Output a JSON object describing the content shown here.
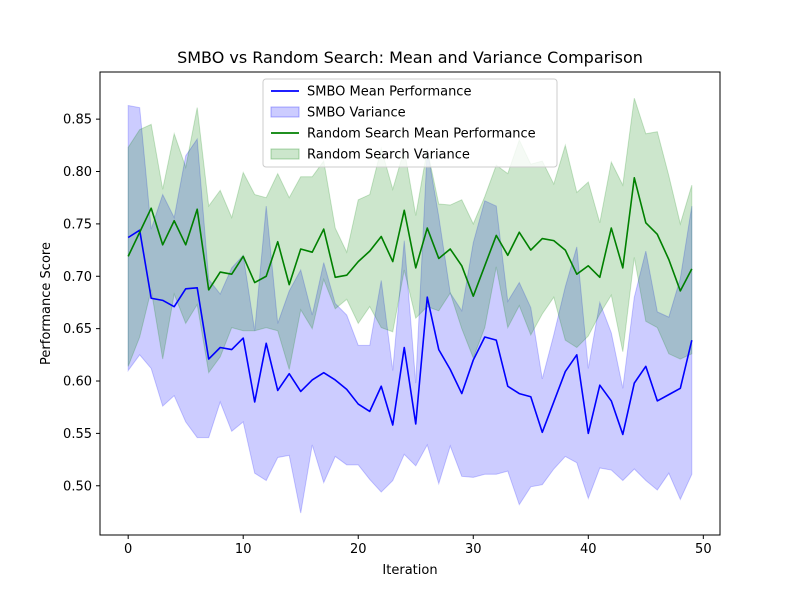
{
  "chart_data": {
    "type": "line",
    "title": "SMBO vs Random Search: Mean and Variance Comparison",
    "xlabel": "Iteration",
    "ylabel": "Performance Score",
    "xlim": [
      -2.45,
      51.45
    ],
    "ylim": [
      0.453,
      0.895
    ],
    "xticks": [
      0,
      10,
      20,
      30,
      40,
      50
    ],
    "yticks": [
      0.5,
      0.55,
      0.6,
      0.65,
      0.7,
      0.75,
      0.8,
      0.85
    ],
    "ytick_labels": [
      "0.50",
      "0.55",
      "0.60",
      "0.65",
      "0.70",
      "0.75",
      "0.80",
      "0.85"
    ],
    "grid": false,
    "legend_position": "top-center",
    "x": [
      0,
      1,
      2,
      3,
      4,
      5,
      6,
      7,
      8,
      9,
      10,
      11,
      12,
      13,
      14,
      15,
      16,
      17,
      18,
      19,
      20,
      21,
      22,
      23,
      24,
      25,
      26,
      27,
      28,
      29,
      30,
      31,
      32,
      33,
      34,
      35,
      36,
      37,
      38,
      39,
      40,
      41,
      42,
      43,
      44,
      45,
      46,
      47,
      48,
      49
    ],
    "series": [
      {
        "name": "SMBO Mean Performance",
        "kind": "line",
        "color": "#0000ff",
        "values": [
          0.737,
          0.744,
          0.679,
          0.677,
          0.671,
          0.688,
          0.689,
          0.621,
          0.632,
          0.63,
          0.641,
          0.58,
          0.636,
          0.591,
          0.607,
          0.59,
          0.601,
          0.608,
          0.601,
          0.592,
          0.578,
          0.571,
          0.595,
          0.558,
          0.632,
          0.559,
          0.68,
          0.63,
          0.611,
          0.588,
          0.62,
          0.642,
          0.639,
          0.595,
          0.588,
          0.585,
          0.551,
          0.58,
          0.609,
          0.625,
          0.55,
          0.596,
          0.581,
          0.549,
          0.598,
          0.614,
          0.581,
          0.587,
          0.593,
          0.639
        ]
      },
      {
        "name": "SMBO Variance",
        "kind": "band",
        "color": "#0000ff",
        "opacity": 0.2,
        "lower": [
          0.61,
          0.625,
          0.612,
          0.576,
          0.586,
          0.561,
          0.546,
          0.546,
          0.58,
          0.552,
          0.561,
          0.512,
          0.505,
          0.527,
          0.529,
          0.474,
          0.539,
          0.503,
          0.528,
          0.52,
          0.52,
          0.506,
          0.494,
          0.505,
          0.53,
          0.519,
          0.539,
          0.502,
          0.538,
          0.509,
          0.508,
          0.511,
          0.511,
          0.514,
          0.482,
          0.499,
          0.501,
          0.516,
          0.528,
          0.522,
          0.488,
          0.517,
          0.515,
          0.505,
          0.516,
          0.505,
          0.496,
          0.512,
          0.487,
          0.511
        ],
        "upper": [
          0.863,
          0.861,
          0.745,
          0.778,
          0.756,
          0.815,
          0.831,
          0.697,
          0.683,
          0.708,
          0.72,
          0.648,
          0.767,
          0.655,
          0.686,
          0.706,
          0.663,
          0.713,
          0.674,
          0.663,
          0.634,
          0.634,
          0.696,
          0.61,
          0.734,
          0.598,
          0.821,
          0.757,
          0.684,
          0.667,
          0.732,
          0.772,
          0.767,
          0.676,
          0.694,
          0.67,
          0.602,
          0.644,
          0.69,
          0.728,
          0.612,
          0.675,
          0.646,
          0.593,
          0.68,
          0.724,
          0.666,
          0.661,
          0.698,
          0.767
        ]
      },
      {
        "name": "Random Search Mean Performance",
        "kind": "line",
        "color": "#008000",
        "values": [
          0.719,
          0.742,
          0.765,
          0.73,
          0.753,
          0.73,
          0.764,
          0.687,
          0.704,
          0.702,
          0.719,
          0.694,
          0.7,
          0.733,
          0.692,
          0.726,
          0.723,
          0.745,
          0.699,
          0.701,
          0.714,
          0.724,
          0.738,
          0.714,
          0.763,
          0.708,
          0.746,
          0.717,
          0.726,
          0.71,
          0.681,
          0.71,
          0.739,
          0.72,
          0.742,
          0.725,
          0.736,
          0.734,
          0.725,
          0.702,
          0.71,
          0.699,
          0.746,
          0.708,
          0.794,
          0.751,
          0.74,
          0.716,
          0.686,
          0.707
        ]
      },
      {
        "name": "Random Search Variance",
        "kind": "band",
        "color": "#008000",
        "opacity": 0.2,
        "lower": [
          0.614,
          0.642,
          0.687,
          0.621,
          0.683,
          0.655,
          0.673,
          0.608,
          0.623,
          0.651,
          0.648,
          0.648,
          0.651,
          0.648,
          0.611,
          0.668,
          0.65,
          0.697,
          0.669,
          0.678,
          0.655,
          0.671,
          0.651,
          0.647,
          0.706,
          0.66,
          0.671,
          0.667,
          0.684,
          0.65,
          0.622,
          0.651,
          0.709,
          0.651,
          0.672,
          0.644,
          0.664,
          0.68,
          0.639,
          0.632,
          0.643,
          0.664,
          0.682,
          0.628,
          0.718,
          0.657,
          0.651,
          0.626,
          0.621,
          0.626
        ],
        "upper": [
          0.823,
          0.84,
          0.845,
          0.783,
          0.836,
          0.804,
          0.861,
          0.767,
          0.782,
          0.756,
          0.799,
          0.778,
          0.775,
          0.798,
          0.775,
          0.795,
          0.795,
          0.81,
          0.746,
          0.723,
          0.773,
          0.778,
          0.822,
          0.783,
          0.821,
          0.758,
          0.821,
          0.769,
          0.768,
          0.773,
          0.75,
          0.776,
          0.806,
          0.798,
          0.83,
          0.807,
          0.81,
          0.788,
          0.825,
          0.78,
          0.79,
          0.751,
          0.809,
          0.787,
          0.87,
          0.836,
          0.838,
          0.796,
          0.75,
          0.787
        ]
      }
    ]
  }
}
